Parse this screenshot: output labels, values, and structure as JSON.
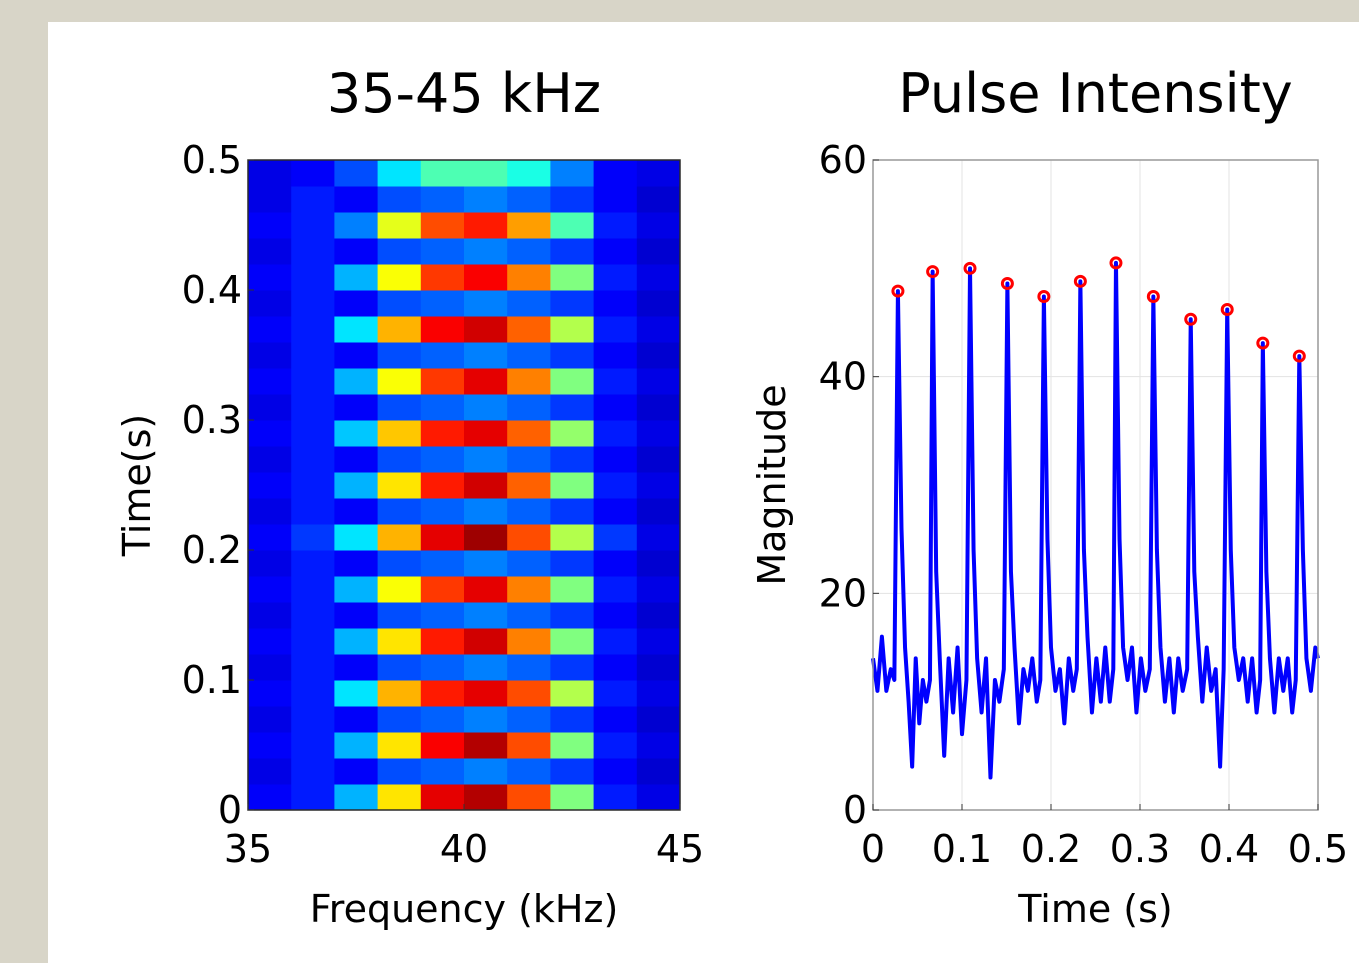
{
  "chart_data": [
    {
      "type": "heatmap",
      "title": "35-45 kHz",
      "x_label": "Frequency (kHz)",
      "y_label": "Time(s)",
      "colormap": "jet",
      "zlim": [
        0,
        1
      ],
      "xbins": [
        35,
        36,
        37,
        38,
        39,
        40,
        41,
        42,
        43,
        44,
        45
      ],
      "ybins": [
        0,
        0.02,
        0.04,
        0.06,
        0.08,
        0.1,
        0.12,
        0.14,
        0.16,
        0.18,
        0.2,
        0.22,
        0.24,
        0.26,
        0.28,
        0.3,
        0.32,
        0.34,
        0.36,
        0.38,
        0.4,
        0.42,
        0.44,
        0.46,
        0.48,
        0.5
      ],
      "values": [
        [
          0.12,
          0.15,
          0.3,
          0.65,
          0.9,
          0.95,
          0.8,
          0.5,
          0.15,
          0.1
        ],
        [
          0.1,
          0.15,
          0.12,
          0.2,
          0.22,
          0.25,
          0.22,
          0.18,
          0.12,
          0.08
        ],
        [
          0.12,
          0.15,
          0.3,
          0.65,
          0.88,
          0.95,
          0.8,
          0.5,
          0.15,
          0.1
        ],
        [
          0.1,
          0.15,
          0.12,
          0.2,
          0.22,
          0.25,
          0.22,
          0.18,
          0.12,
          0.08
        ],
        [
          0.12,
          0.15,
          0.35,
          0.7,
          0.85,
          0.9,
          0.8,
          0.55,
          0.15,
          0.1
        ],
        [
          0.1,
          0.15,
          0.12,
          0.2,
          0.22,
          0.25,
          0.22,
          0.18,
          0.12,
          0.08
        ],
        [
          0.12,
          0.15,
          0.3,
          0.65,
          0.85,
          0.92,
          0.75,
          0.5,
          0.15,
          0.1
        ],
        [
          0.1,
          0.15,
          0.12,
          0.2,
          0.22,
          0.25,
          0.22,
          0.18,
          0.12,
          0.08
        ],
        [
          0.12,
          0.15,
          0.3,
          0.62,
          0.82,
          0.9,
          0.75,
          0.5,
          0.15,
          0.1
        ],
        [
          0.1,
          0.15,
          0.12,
          0.2,
          0.22,
          0.25,
          0.22,
          0.18,
          0.12,
          0.08
        ],
        [
          0.12,
          0.18,
          0.35,
          0.7,
          0.9,
          0.97,
          0.8,
          0.55,
          0.18,
          0.1
        ],
        [
          0.1,
          0.15,
          0.12,
          0.2,
          0.22,
          0.25,
          0.22,
          0.18,
          0.12,
          0.08
        ],
        [
          0.12,
          0.15,
          0.3,
          0.65,
          0.85,
          0.92,
          0.78,
          0.5,
          0.15,
          0.1
        ],
        [
          0.1,
          0.15,
          0.12,
          0.2,
          0.22,
          0.25,
          0.22,
          0.18,
          0.12,
          0.08
        ],
        [
          0.12,
          0.15,
          0.32,
          0.68,
          0.85,
          0.9,
          0.78,
          0.52,
          0.15,
          0.1
        ],
        [
          0.1,
          0.15,
          0.12,
          0.2,
          0.22,
          0.25,
          0.22,
          0.18,
          0.12,
          0.08
        ],
        [
          0.12,
          0.15,
          0.3,
          0.62,
          0.82,
          0.9,
          0.75,
          0.5,
          0.15,
          0.1
        ],
        [
          0.1,
          0.15,
          0.12,
          0.2,
          0.22,
          0.25,
          0.22,
          0.18,
          0.12,
          0.08
        ],
        [
          0.12,
          0.15,
          0.35,
          0.7,
          0.88,
          0.92,
          0.78,
          0.55,
          0.15,
          0.1
        ],
        [
          0.1,
          0.15,
          0.12,
          0.2,
          0.22,
          0.25,
          0.22,
          0.18,
          0.12,
          0.08
        ],
        [
          0.12,
          0.15,
          0.3,
          0.62,
          0.82,
          0.88,
          0.75,
          0.5,
          0.15,
          0.1
        ],
        [
          0.1,
          0.15,
          0.12,
          0.2,
          0.22,
          0.25,
          0.22,
          0.18,
          0.12,
          0.08
        ],
        [
          0.12,
          0.15,
          0.25,
          0.6,
          0.8,
          0.85,
          0.72,
          0.45,
          0.15,
          0.1
        ],
        [
          0.1,
          0.15,
          0.12,
          0.2,
          0.22,
          0.25,
          0.22,
          0.18,
          0.12,
          0.08
        ],
        [
          0.1,
          0.12,
          0.2,
          0.35,
          0.45,
          0.45,
          0.4,
          0.25,
          0.12,
          0.1
        ]
      ],
      "xlim": [
        35,
        45
      ],
      "xticks": [
        35,
        40,
        45
      ],
      "ylim": [
        0,
        0.5
      ],
      "yticks": [
        0,
        0.1,
        0.2,
        0.3,
        0.4,
        0.5
      ]
    },
    {
      "type": "line",
      "title": "Pulse Intensity",
      "x_label": "Time (s)",
      "y_label": "Magnitude",
      "grid": true,
      "series": [
        {
          "type": "line",
          "color": "#0000ff",
          "x": [
            0,
            0.005,
            0.01,
            0.015,
            0.02,
            0.024,
            0.028,
            0.032,
            0.036,
            0.04,
            0.044,
            0.048,
            0.052,
            0.056,
            0.06,
            0.064,
            0.067,
            0.071,
            0.075,
            0.08,
            0.085,
            0.09,
            0.095,
            0.1,
            0.105,
            0.109,
            0.113,
            0.117,
            0.122,
            0.127,
            0.132,
            0.137,
            0.142,
            0.147,
            0.151,
            0.155,
            0.159,
            0.164,
            0.169,
            0.174,
            0.179,
            0.184,
            0.188,
            0.192,
            0.196,
            0.2,
            0.205,
            0.21,
            0.215,
            0.22,
            0.225,
            0.229,
            0.233,
            0.237,
            0.241,
            0.246,
            0.251,
            0.256,
            0.261,
            0.266,
            0.27,
            0.273,
            0.277,
            0.281,
            0.286,
            0.291,
            0.296,
            0.301,
            0.306,
            0.311,
            0.315,
            0.319,
            0.323,
            0.328,
            0.333,
            0.338,
            0.343,
            0.348,
            0.353,
            0.357,
            0.361,
            0.365,
            0.37,
            0.375,
            0.38,
            0.385,
            0.39,
            0.394,
            0.398,
            0.402,
            0.406,
            0.411,
            0.416,
            0.421,
            0.426,
            0.431,
            0.435,
            0.438,
            0.442,
            0.446,
            0.451,
            0.456,
            0.461,
            0.466,
            0.471,
            0.475,
            0.479,
            0.483,
            0.487,
            0.492,
            0.497,
            0.5
          ],
          "values": [
            14,
            11,
            16,
            11,
            13,
            12,
            47.9,
            26,
            15,
            10,
            4,
            14,
            8,
            12,
            10,
            12,
            49.7,
            22,
            14,
            5,
            14,
            9,
            15,
            7,
            12,
            50,
            24,
            14,
            9,
            14,
            3,
            12,
            10,
            13,
            48.6,
            22,
            15,
            8,
            13,
            11,
            14,
            10,
            12,
            47.4,
            25,
            15,
            11,
            13,
            8,
            14,
            11,
            13,
            48.8,
            24,
            16,
            9,
            14,
            10,
            15,
            10,
            13,
            50.5,
            25,
            15,
            12,
            15,
            9,
            14,
            11,
            13,
            47.4,
            24,
            15,
            10,
            14,
            9,
            14,
            11,
            13,
            45.3,
            22,
            16,
            10,
            15,
            11,
            13,
            4,
            13,
            46.2,
            24,
            15,
            12,
            14,
            10,
            14,
            9,
            12,
            43.1,
            22,
            14,
            9,
            14,
            11,
            14,
            9,
            12,
            41.9,
            24,
            14,
            11,
            15,
            14
          ]
        },
        {
          "type": "scatter",
          "color": "#ff0000",
          "x": [
            0.028,
            0.067,
            0.109,
            0.151,
            0.192,
            0.233,
            0.273,
            0.315,
            0.357,
            0.398,
            0.438,
            0.479
          ],
          "values": [
            47.9,
            49.7,
            50,
            48.6,
            47.4,
            48.8,
            50.5,
            47.4,
            45.3,
            46.2,
            43.1,
            41.9
          ]
        }
      ],
      "xlim": [
        0,
        0.5
      ],
      "xticks": [
        0,
        0.1,
        0.2,
        0.3,
        0.4,
        0.5
      ],
      "ylim": [
        0,
        60
      ],
      "yticks": [
        0,
        20,
        40,
        60
      ]
    }
  ]
}
